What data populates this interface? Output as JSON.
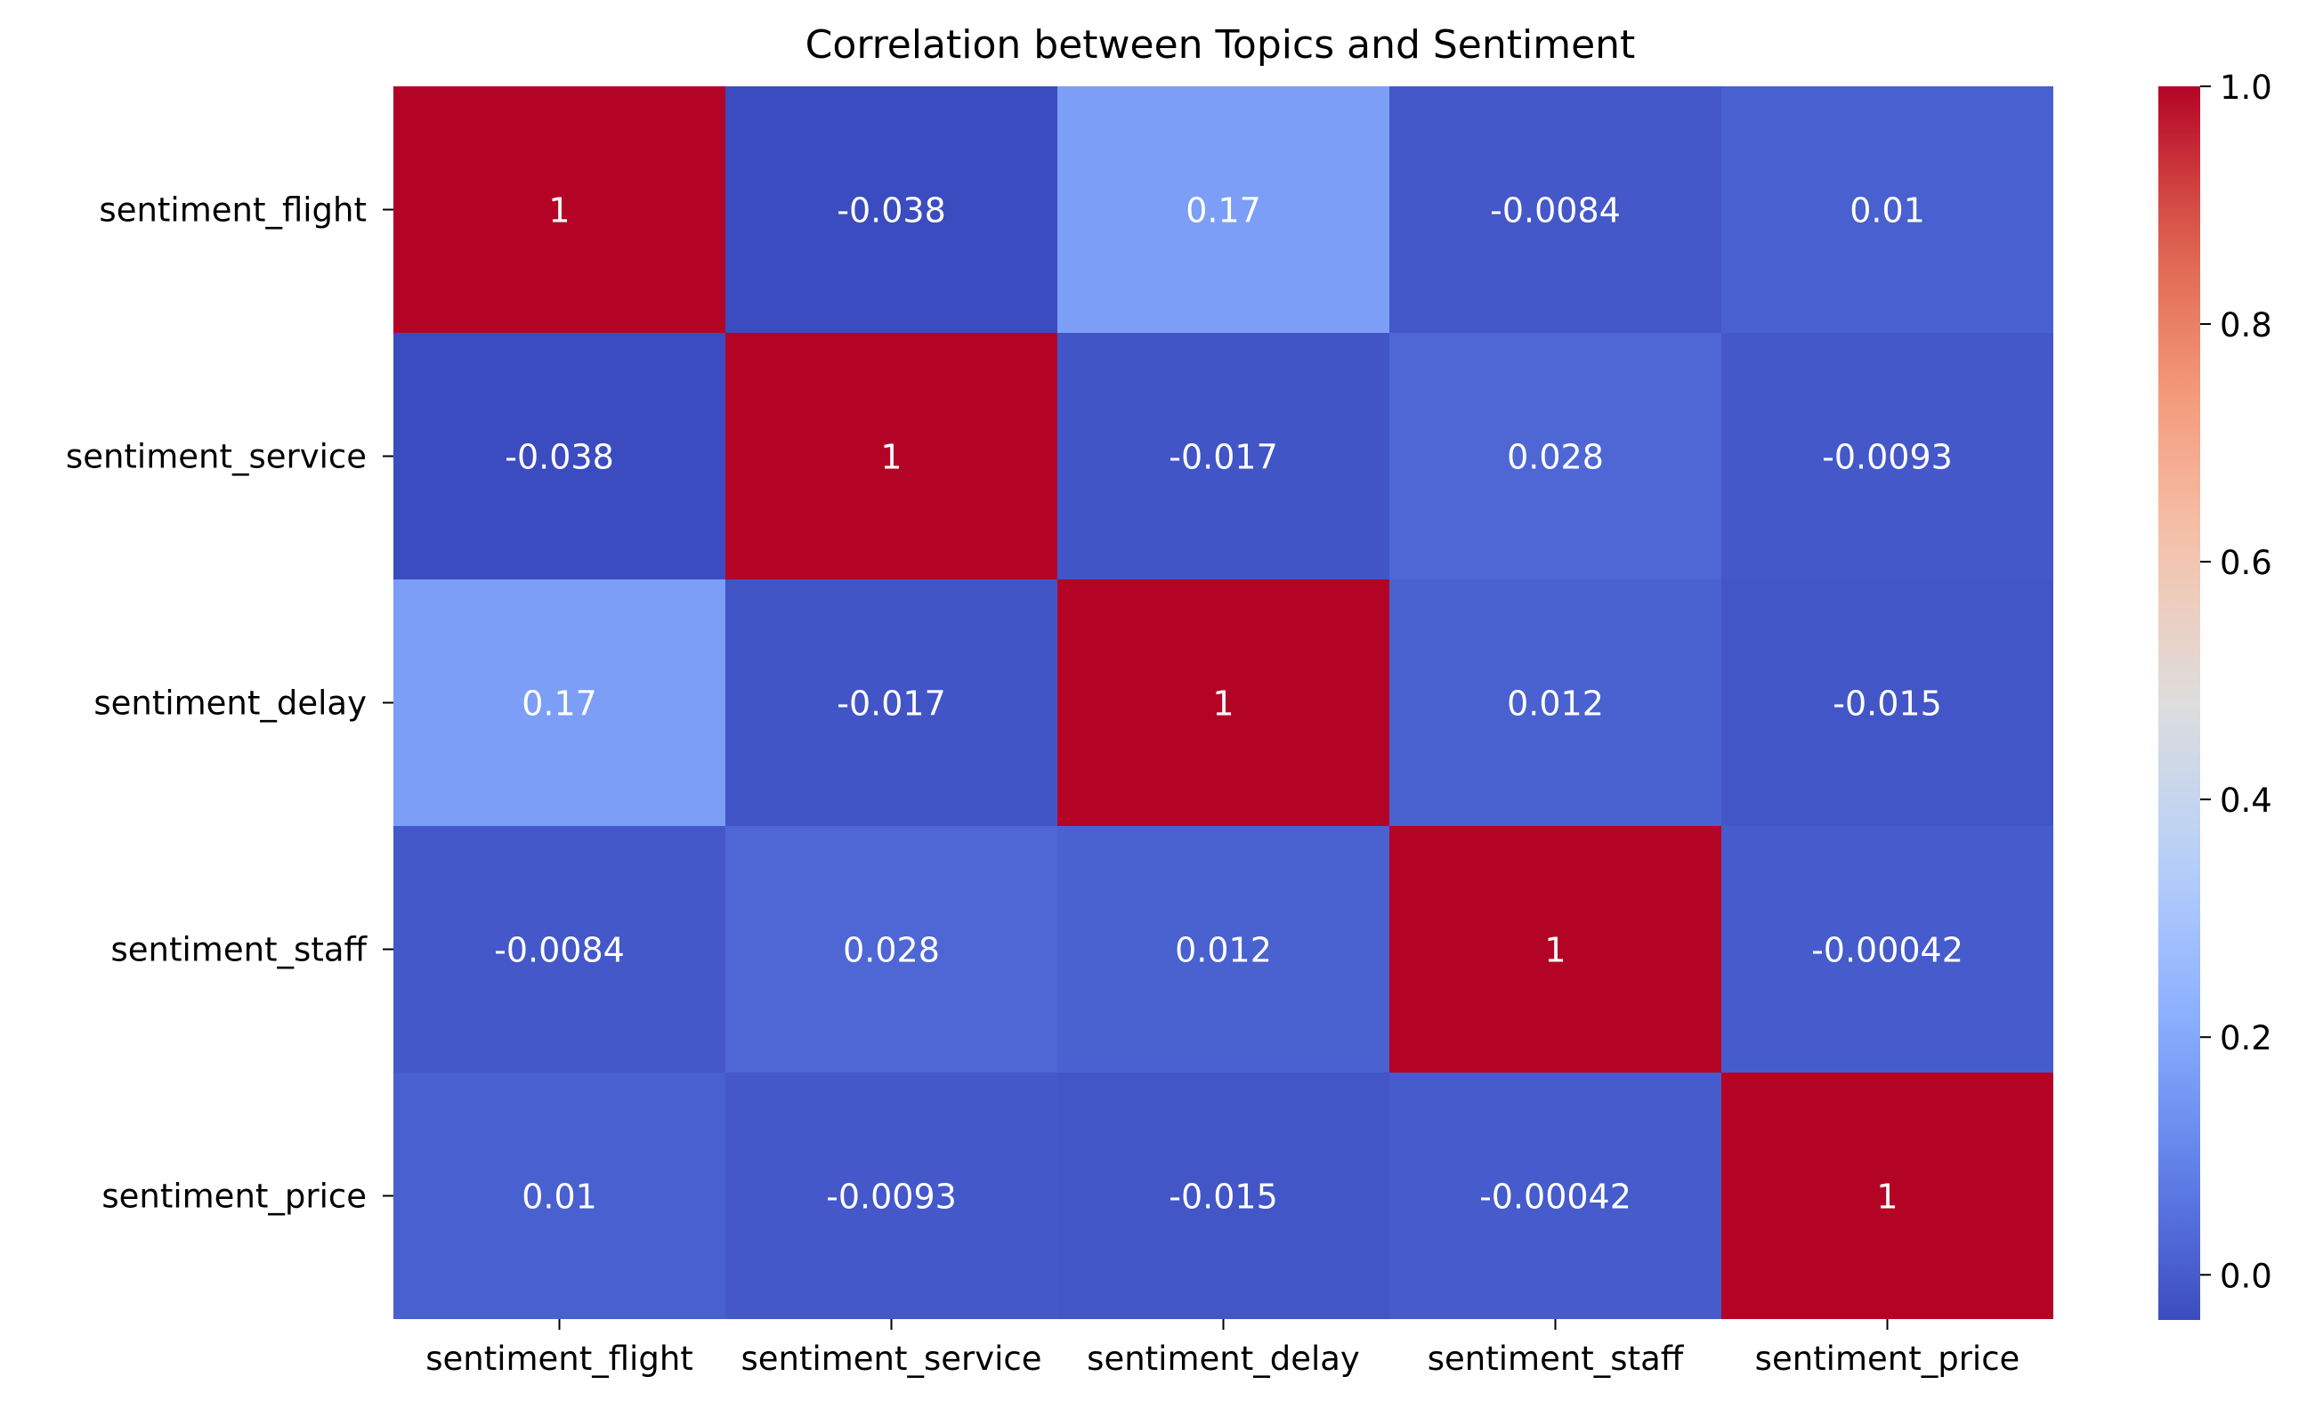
{
  "chart_data": {
    "type": "heatmap",
    "title": "Correlation between Topics and Sentiment",
    "xlabel": "",
    "ylabel": "",
    "x_categories": [
      "sentiment_flight",
      "sentiment_service",
      "sentiment_delay",
      "sentiment_staff",
      "sentiment_price"
    ],
    "y_categories": [
      "sentiment_flight",
      "sentiment_service",
      "sentiment_delay",
      "sentiment_staff",
      "sentiment_price"
    ],
    "values": [
      [
        1,
        -0.038,
        0.17,
        -0.0084,
        0.01
      ],
      [
        -0.038,
        1,
        -0.017,
        0.028,
        -0.0093
      ],
      [
        0.17,
        -0.017,
        1,
        0.012,
        -0.015
      ],
      [
        -0.0084,
        0.028,
        0.012,
        1,
        -0.00042
      ],
      [
        0.01,
        -0.0093,
        -0.015,
        -0.00042,
        1
      ]
    ],
    "annotations": [
      [
        "1",
        "-0.038",
        "0.17",
        "-0.0084",
        "0.01"
      ],
      [
        "-0.038",
        "1",
        "-0.017",
        "0.028",
        "-0.0093"
      ],
      [
        "0.17",
        "-0.017",
        "1",
        "0.012",
        "-0.015"
      ],
      [
        "-0.0084",
        "0.028",
        "0.012",
        "1",
        "-0.00042"
      ],
      [
        "0.01",
        "-0.0093",
        "-0.015",
        "-0.00042",
        "1"
      ]
    ],
    "colormap": "coolwarm",
    "vmin": -0.038,
    "vmax": 1,
    "colorbar": {
      "ticks": [
        0,
        0.2,
        0.4,
        0.6,
        0.8,
        1.0
      ],
      "tick_labels": [
        "0.0",
        "0.2",
        "0.4",
        "0.6",
        "0.8",
        "1.0"
      ],
      "placement": "right"
    },
    "grid": false,
    "legend": "none"
  }
}
